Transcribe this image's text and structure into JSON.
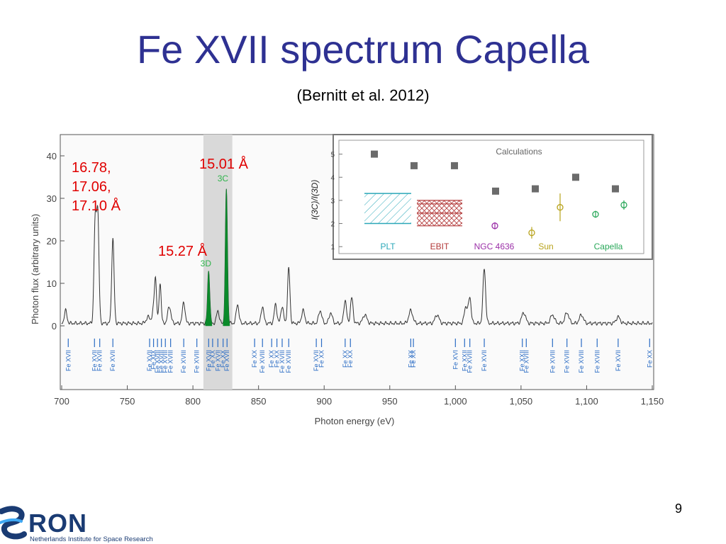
{
  "slide": {
    "title": "Fe XVII spectrum Capella",
    "subtitle": "(Bernitt et al. 2012)",
    "page_number": "9",
    "annotations": {
      "left_lines": [
        "16.78,",
        "17.06,",
        "17.10 Å"
      ],
      "mid": "15.27 Å",
      "right": "15.01 Å"
    },
    "logo": {
      "name": "RON",
      "tagline": "Netherlands Institute for Space Research"
    }
  },
  "chart_data": [
    {
      "type": "line",
      "xlabel": "Photon energy (eV)",
      "ylabel": "Photon flux (arbitrary units)",
      "xlim": [
        700,
        1150
      ],
      "ylim": [
        -15,
        45
      ],
      "xticks": [
        700,
        750,
        800,
        850,
        900,
        950,
        1000,
        1050,
        1100,
        1150
      ],
      "xtick_labels": [
        "700",
        "750",
        "800",
        "850",
        "900",
        "950",
        "1,000",
        "1,050",
        "1,100",
        "1,150"
      ],
      "yticks": [
        0,
        10,
        20,
        30,
        40
      ],
      "ytick_labels": [
        "0",
        "10",
        "20",
        "30",
        "40"
      ],
      "highlight_band": [
        808,
        830
      ],
      "line_labels": [
        {
          "text": "3C",
          "x": 825,
          "y": 34
        },
        {
          "text": "3D",
          "x": 812,
          "y": 14
        }
      ],
      "line_color": "#333333",
      "highlight_color": "#0a8a2a",
      "peaks": [
        {
          "x": 703,
          "y": 3,
          "w": 1.0
        },
        {
          "x": 725.5,
          "y": 23.5,
          "w": 0.9
        },
        {
          "x": 727.5,
          "y": 25.5,
          "w": 0.9
        },
        {
          "x": 739,
          "y": 20,
          "w": 0.9
        },
        {
          "x": 766,
          "y": 1.5,
          "w": 1.5
        },
        {
          "x": 770,
          "y": 3,
          "w": 1.0
        },
        {
          "x": 771.5,
          "y": 10,
          "w": 0.8
        },
        {
          "x": 775,
          "y": 9.5,
          "w": 0.8
        },
        {
          "x": 782,
          "y": 4,
          "w": 1.2
        },
        {
          "x": 793,
          "y": 5,
          "w": 1.0
        },
        {
          "x": 812,
          "y": 12.5,
          "w": 0.8
        },
        {
          "x": 819,
          "y": 3,
          "w": 1.0
        },
        {
          "x": 825.5,
          "y": 31.5,
          "w": 0.8
        },
        {
          "x": 834,
          "y": 4.5,
          "w": 1.0
        },
        {
          "x": 853,
          "y": 4,
          "w": 1.0
        },
        {
          "x": 863,
          "y": 4.5,
          "w": 1.0
        },
        {
          "x": 868,
          "y": 4,
          "w": 1.0
        },
        {
          "x": 873,
          "y": 13,
          "w": 0.9
        },
        {
          "x": 884,
          "y": 3,
          "w": 1.2
        },
        {
          "x": 897,
          "y": 3,
          "w": 1.2
        },
        {
          "x": 905,
          "y": 2.5,
          "w": 1.2
        },
        {
          "x": 916,
          "y": 5.5,
          "w": 1.0
        },
        {
          "x": 921,
          "y": 6,
          "w": 1.0
        },
        {
          "x": 931,
          "y": 2,
          "w": 1.5
        },
        {
          "x": 966,
          "y": 3,
          "w": 1.5
        },
        {
          "x": 986,
          "y": 2,
          "w": 1.5
        },
        {
          "x": 1008,
          "y": 4,
          "w": 1.2
        },
        {
          "x": 1011,
          "y": 6,
          "w": 1.0
        },
        {
          "x": 1022,
          "y": 13,
          "w": 1.0
        },
        {
          "x": 1052,
          "y": 2.5,
          "w": 1.5
        },
        {
          "x": 1074,
          "y": 2,
          "w": 1.5
        },
        {
          "x": 1085,
          "y": 2.5,
          "w": 1.5
        },
        {
          "x": 1096,
          "y": 2,
          "w": 1.5
        },
        {
          "x": 1124,
          "y": 1.5,
          "w": 1.5
        }
      ],
      "ion_labels": [
        {
          "x": 705,
          "labels": [
            "Fe XVII"
          ]
        },
        {
          "x": 725,
          "labels": [
            "Fe XVII"
          ]
        },
        {
          "x": 729,
          "labels": [
            "Fe XVII"
          ]
        },
        {
          "x": 739,
          "labels": [
            "Fe XVII"
          ]
        },
        {
          "x": 767,
          "labels": [
            "Fe XVII"
          ]
        },
        {
          "x": 770,
          "labels": [
            "Fe XIX"
          ]
        },
        {
          "x": 773,
          "labels": [
            "Fe XVIII"
          ]
        },
        {
          "x": 776,
          "labels": [
            "Fe XVIII"
          ]
        },
        {
          "x": 779,
          "labels": [
            "Fe XVIII"
          ]
        },
        {
          "x": 783,
          "labels": [
            "Fe XVIII"
          ]
        },
        {
          "x": 793,
          "labels": [
            "Fe XVIII"
          ]
        },
        {
          "x": 803,
          "labels": [
            "Fe XVIII"
          ]
        },
        {
          "x": 812,
          "labels": [
            "Fe XVII"
          ]
        },
        {
          "x": 815,
          "labels": [
            "Fe XX"
          ]
        },
        {
          "x": 819,
          "labels": [
            "Fe XVII"
          ]
        },
        {
          "x": 823,
          "labels": [
            "Fe XX"
          ]
        },
        {
          "x": 826,
          "labels": [
            "Fe XVII"
          ]
        },
        {
          "x": 847,
          "labels": [
            "Fe XX"
          ]
        },
        {
          "x": 853,
          "labels": [
            "Fe XVIII"
          ]
        },
        {
          "x": 860,
          "labels": [
            "Fe XX"
          ]
        },
        {
          "x": 864,
          "labels": [
            "Fe XX"
          ]
        },
        {
          "x": 868,
          "labels": [
            "Fe XVIII"
          ]
        },
        {
          "x": 873,
          "labels": [
            "Fe XVIII"
          ]
        },
        {
          "x": 894,
          "labels": [
            "Fe XVII"
          ]
        },
        {
          "x": 898,
          "labels": [
            "Fe XX"
          ]
        },
        {
          "x": 916,
          "labels": [
            "Fe XX"
          ]
        },
        {
          "x": 920,
          "labels": [
            "Fe XX"
          ]
        },
        {
          "x": 966,
          "labels": [
            "Fe XX"
          ]
        },
        {
          "x": 968,
          "labels": [
            "Fe XX"
          ]
        },
        {
          "x": 1000,
          "labels": [
            "Fe XVI"
          ]
        },
        {
          "x": 1007,
          "labels": [
            "Fe XXII"
          ]
        },
        {
          "x": 1011,
          "labels": [
            "Fe XVIII"
          ]
        },
        {
          "x": 1022,
          "labels": [
            "Fe XVII"
          ]
        },
        {
          "x": 1051,
          "labels": [
            "Fe XXII"
          ]
        },
        {
          "x": 1054,
          "labels": [
            "Fe XVIII"
          ]
        },
        {
          "x": 1074,
          "labels": [
            "Fe XVIII"
          ]
        },
        {
          "x": 1085,
          "labels": [
            "Fe XVIII"
          ]
        },
        {
          "x": 1096,
          "labels": [
            "Fe XVIII"
          ]
        },
        {
          "x": 1108,
          "labels": [
            "Fe XVIII"
          ]
        },
        {
          "x": 1124,
          "labels": [
            "Fe XVII"
          ]
        },
        {
          "x": 1148,
          "labels": [
            "Fe XX"
          ]
        }
      ]
    },
    {
      "type": "scatter",
      "title": "Calculations",
      "ylabel": "I(3C)/I(3D)",
      "ylim": [
        0.7,
        5.6
      ],
      "yticks": [
        1,
        2,
        3,
        4,
        5
      ],
      "categories": [
        "PLT",
        "EBIT",
        "NGC 4636",
        "Sun",
        "Capella"
      ],
      "category_colors": [
        "#2aa7b8",
        "#b33a3a",
        "#9b30a8",
        "#b8a21a",
        "#2aa85a"
      ],
      "calculations": [
        5.0,
        4.5,
        4.5,
        3.4,
        3.5,
        4.0,
        3.5
      ],
      "ranges": {
        "PLT": [
          2.0,
          3.3
        ],
        "EBIT": [
          1.9,
          3.0
        ]
      },
      "observations": [
        {
          "category": "NGC 4636",
          "value": 1.9,
          "err": 0.15
        },
        {
          "category": "Sun",
          "value": 1.6,
          "err": 0.25
        },
        {
          "category": "Sun",
          "value": 2.7,
          "err": 0.6
        },
        {
          "category": "Capella",
          "value": 2.4,
          "err": 0.15
        },
        {
          "category": "Capella",
          "value": 2.8,
          "err": 0.2
        }
      ]
    }
  ]
}
